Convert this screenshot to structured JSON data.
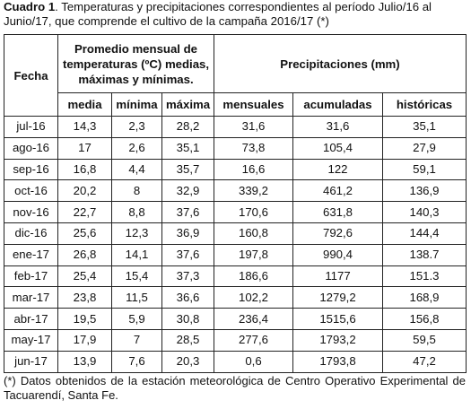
{
  "caption": {
    "label": "Cuadro 1",
    "text": ". Temperaturas y precipitaciones correspondientes al período Julio/16 al Junio/17, que comprende el cultivo de la campaña 2016/17 (*)"
  },
  "table": {
    "header_fecha": "Fecha",
    "header_temperaturas": "Promedio mensual de temperaturas (ºC) medias, máximas y mínimas.",
    "header_precipitaciones": "Precipitaciones (mm)",
    "subheaders": [
      "media",
      "mínima",
      "máxima",
      "mensuales",
      "acumuladas",
      "históricas"
    ],
    "rows": [
      [
        "jul-16",
        "14,3",
        "2,3",
        "28,2",
        "31,6",
        "31,6",
        "35,1"
      ],
      [
        "ago-16",
        "17",
        "2,6",
        "35,1",
        "73,8",
        "105,4",
        "27,9"
      ],
      [
        "sep-16",
        "16,8",
        "4,4",
        "35,7",
        "16,6",
        "122",
        "59,1"
      ],
      [
        "oct-16",
        "20,2",
        "8",
        "32,9",
        "339,2",
        "461,2",
        "136,9"
      ],
      [
        "nov-16",
        "22,7",
        "8,8",
        "37,6",
        "170,6",
        "631,8",
        "140,3"
      ],
      [
        "dic-16",
        "25,6",
        "12,3",
        "36,9",
        "160,8",
        "792,6",
        "144,4"
      ],
      [
        "ene-17",
        "26,8",
        "14,1",
        "37,6",
        "197,8",
        "990,4",
        "138.7"
      ],
      [
        "feb-17",
        "25,4",
        "15,4",
        "37,3",
        "186,6",
        "1177",
        "151.3"
      ],
      [
        "mar-17",
        "23,8",
        "11,5",
        "36,6",
        "102,2",
        "1279,2",
        "168,9"
      ],
      [
        "abr-17",
        "19,5",
        "5,9",
        "30,8",
        "236,4",
        "1515,6",
        "156,8"
      ],
      [
        "may-17",
        "17,9",
        "7",
        "28,5",
        "277,6",
        "1793,2",
        "59,5"
      ],
      [
        "jun-17",
        "13,9",
        "7,6",
        "20,3",
        "0,6",
        "1793,8",
        "47,2"
      ]
    ]
  },
  "footnote": "(*) Datos obtenidos de la estación meteorológica de Centro Operativo Experimental de Tacuarendí, Santa Fe."
}
